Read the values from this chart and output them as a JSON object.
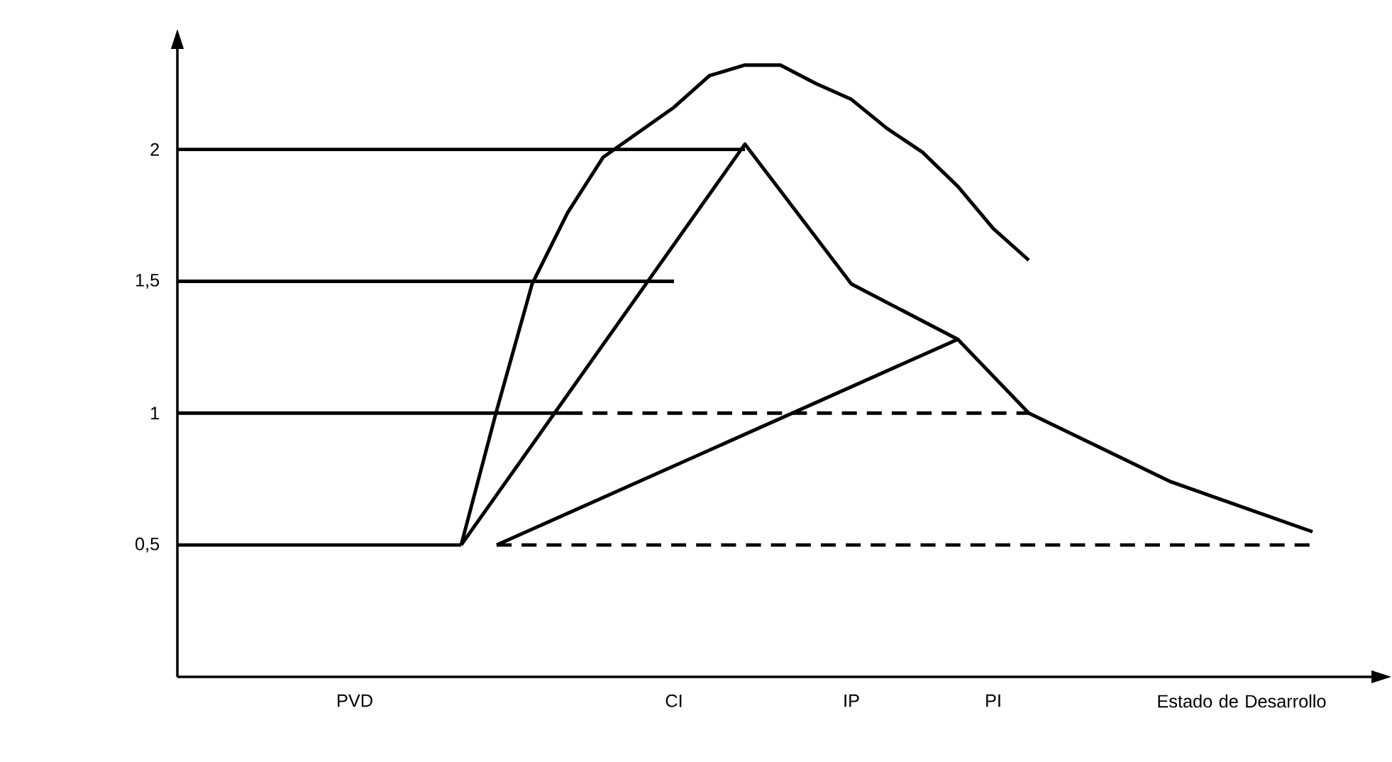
{
  "chart_data": {
    "type": "line",
    "ylim": [
      0,
      2.4
    ],
    "categories": [
      null,
      null,
      null,
      null,
      null,
      "PVD",
      null,
      null,
      null,
      null,
      null,
      null,
      null,
      null,
      "CI",
      null,
      null,
      null,
      null,
      "IP",
      null,
      null,
      null,
      "PI",
      null,
      null,
      null,
      null,
      null,
      null,
      "Estado de Desarrollo",
      null,
      null
    ],
    "yticks": [
      {
        "value": 0.5,
        "label": "0,5"
      },
      {
        "value": 1,
        "label": "1"
      },
      {
        "value": 1.5,
        "label": "1,5"
      },
      {
        "value": 2,
        "label": "2"
      }
    ],
    "marker": "none",
    "series": [
      {
        "color": "#000000",
        "line_style": "solid",
        "values": [
          2,
          null,
          null,
          null,
          null,
          null,
          null,
          null,
          null,
          null,
          null,
          null,
          null,
          null,
          null,
          null,
          2,
          null,
          null,
          null,
          null,
          null,
          null,
          null,
          null,
          null,
          null,
          null,
          null,
          null,
          null,
          null,
          null
        ]
      },
      {
        "color": "#000000",
        "line_style": "solid",
        "values": [
          1.5,
          null,
          null,
          null,
          null,
          null,
          null,
          null,
          null,
          null,
          null,
          null,
          null,
          null,
          1.5,
          null,
          null,
          null,
          null,
          null,
          null,
          null,
          null,
          null,
          null,
          null,
          null,
          null,
          null,
          null,
          null,
          null,
          null
        ]
      },
      {
        "color": "#000000",
        "line_style": "solid",
        "values": [
          1,
          null,
          null,
          null,
          null,
          null,
          null,
          null,
          null,
          null,
          null,
          1,
          null,
          null,
          null,
          null,
          null,
          null,
          null,
          null,
          null,
          null,
          null,
          null,
          null,
          null,
          null,
          null,
          null,
          null,
          null,
          null,
          null
        ]
      },
      {
        "color": "#000000",
        "line_style": "dashed",
        "values": [
          null,
          null,
          null,
          null,
          null,
          null,
          null,
          null,
          null,
          null,
          null,
          1,
          null,
          null,
          null,
          null,
          null,
          null,
          null,
          null,
          null,
          null,
          null,
          null,
          1,
          null,
          null,
          null,
          null,
          null,
          null,
          null,
          null
        ]
      },
      {
        "color": "#000000",
        "line_style": "solid",
        "values": [
          0.5,
          null,
          null,
          null,
          null,
          null,
          null,
          null,
          0.5,
          null,
          null,
          null,
          null,
          null,
          null,
          null,
          null,
          null,
          null,
          null,
          null,
          null,
          null,
          null,
          null,
          null,
          null,
          null,
          null,
          null,
          null,
          null,
          null
        ]
      },
      {
        "color": "#000000",
        "line_style": "dashed",
        "values": [
          null,
          null,
          null,
          null,
          null,
          null,
          null,
          null,
          null,
          0.5,
          null,
          null,
          null,
          null,
          null,
          null,
          null,
          null,
          null,
          null,
          null,
          null,
          null,
          null,
          null,
          null,
          null,
          null,
          null,
          null,
          null,
          null,
          0.5
        ]
      },
      {
        "color": "#000000",
        "line_style": "solid",
        "values": [
          null,
          null,
          null,
          null,
          null,
          null,
          null,
          null,
          0.5,
          null,
          null,
          null,
          null,
          null,
          null,
          null,
          2.02,
          null,
          null,
          1.49,
          null,
          null,
          1.28,
          null,
          1.0,
          null,
          null,
          null,
          0.74,
          null,
          null,
          null,
          0.55
        ]
      },
      {
        "color": "#000000",
        "line_style": "solid",
        "values": [
          null,
          null,
          null,
          null,
          null,
          null,
          null,
          null,
          null,
          0.5,
          null,
          null,
          null,
          null,
          null,
          null,
          null,
          null,
          null,
          null,
          null,
          null,
          1.28,
          null,
          null,
          null,
          null,
          null,
          null,
          null,
          null,
          null,
          null
        ]
      },
      {
        "color": "#000000",
        "line_style": "solid",
        "values": [
          null,
          null,
          null,
          null,
          null,
          null,
          null,
          null,
          0.5,
          1.01,
          1.49,
          1.76,
          1.97,
          null,
          2.16,
          2.28,
          2.32,
          2.32,
          2.25,
          2.19,
          2.08,
          1.99,
          1.86,
          1.7,
          1.58,
          null,
          null,
          null,
          null,
          null,
          null,
          null,
          null
        ]
      }
    ]
  }
}
